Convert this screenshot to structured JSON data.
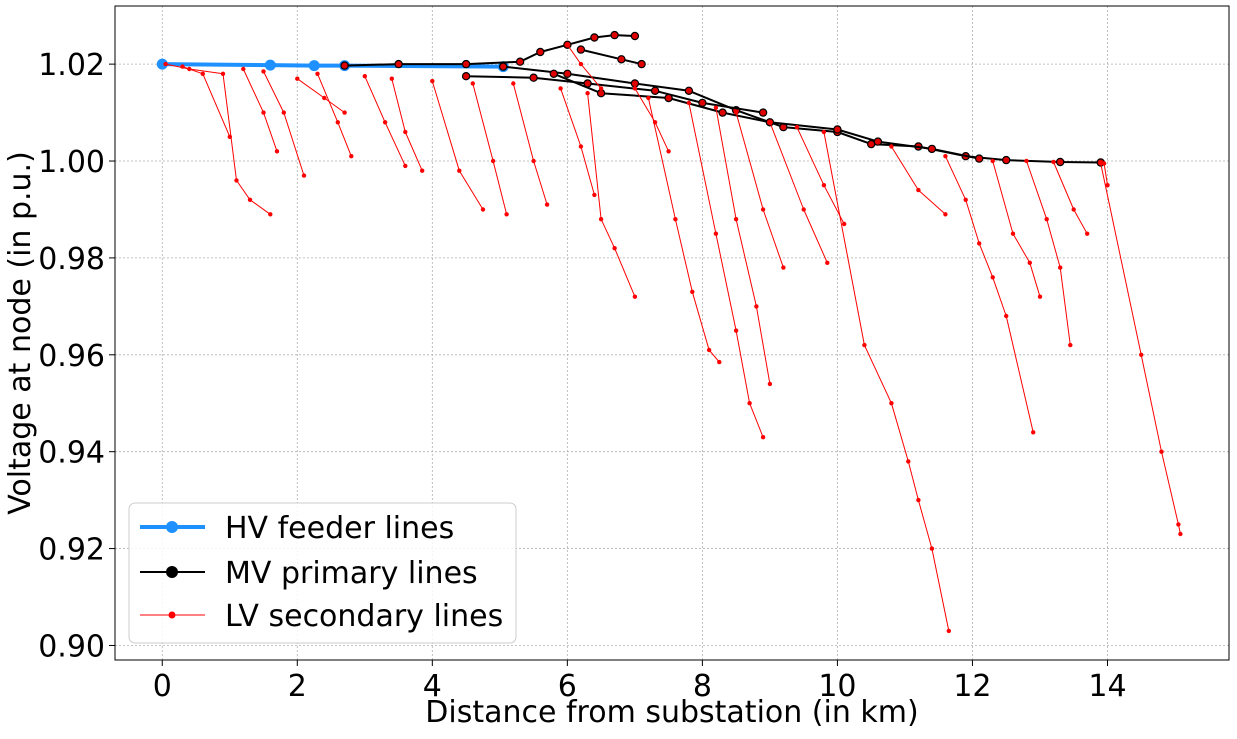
{
  "chart_data": {
    "type": "line",
    "title": "",
    "xlabel": "Distance from substation (in km)",
    "ylabel": "Voltage at node (in p.u.)",
    "xlim": [
      -0.7,
      15.8
    ],
    "ylim": [
      0.897,
      1.032
    ],
    "xticks": [
      0,
      2,
      4,
      6,
      8,
      10,
      12,
      14
    ],
    "yticks": [
      0.9,
      0.92,
      0.94,
      0.96,
      0.98,
      1.0,
      1.02
    ],
    "ytick_labels": [
      "0.90",
      "0.92",
      "0.94",
      "0.96",
      "0.98",
      "1.00",
      "1.02"
    ],
    "grid": true,
    "legend_position": "lower-left",
    "legend": [
      {
        "name": "HV feeder lines",
        "color": "#1e90ff",
        "marker": "circle"
      },
      {
        "name": "MV primary lines",
        "color": "#000000",
        "marker": "circle"
      },
      {
        "name": "LV secondary lines",
        "color": "#ff0000",
        "marker": "circle"
      }
    ],
    "series": [
      {
        "name": "HV feeder lines",
        "color": "#1e90ff",
        "points": [
          [
            0.0,
            1.02
          ],
          [
            1.6,
            1.0198
          ],
          [
            2.25,
            1.0197
          ],
          [
            2.7,
            1.0197
          ],
          [
            5.05,
            1.0195
          ]
        ]
      },
      {
        "name": "MV primary lines",
        "color": "#000000",
        "branches": [
          [
            [
              2.7,
              1.0197
            ],
            [
              3.5,
              1.02
            ],
            [
              4.5,
              1.02
            ],
            [
              5.3,
              1.0205
            ],
            [
              5.6,
              1.0225
            ],
            [
              6.0,
              1.024
            ],
            [
              6.4,
              1.0255
            ],
            [
              6.7,
              1.026
            ],
            [
              7.0,
              1.0258
            ]
          ],
          [
            [
              5.05,
              1.0195
            ],
            [
              6.0,
              1.018
            ],
            [
              7.0,
              1.016
            ],
            [
              7.8,
              1.0145
            ],
            [
              8.5,
              1.0105
            ],
            [
              9.2,
              1.007
            ],
            [
              10.0,
              1.006
            ],
            [
              10.5,
              1.0035
            ],
            [
              11.2,
              1.003
            ],
            [
              11.9,
              1.001
            ],
            [
              12.5,
              1.0002
            ],
            [
              13.3,
              0.9998
            ],
            [
              13.9,
              0.9997
            ]
          ],
          [
            [
              4.5,
              1.0175
            ],
            [
              5.5,
              1.0172
            ],
            [
              6.3,
              1.016
            ],
            [
              7.3,
              1.0145
            ],
            [
              8.0,
              1.012
            ],
            [
              8.9,
              1.01
            ]
          ],
          [
            [
              5.8,
              1.018
            ],
            [
              6.5,
              1.014
            ],
            [
              7.5,
              1.013
            ],
            [
              8.3,
              1.01
            ],
            [
              9.0,
              1.008
            ],
            [
              10.0,
              1.0065
            ],
            [
              10.6,
              1.004
            ],
            [
              11.4,
              1.0025
            ],
            [
              12.1,
              1.0005
            ]
          ],
          [
            [
              6.2,
              1.023
            ],
            [
              6.8,
              1.021
            ],
            [
              7.1,
              1.02
            ]
          ]
        ]
      },
      {
        "name": "LV secondary lines",
        "color": "#ff0000",
        "branches": [
          [
            [
              0.05,
              1.02
            ],
            [
              0.4,
              1.019
            ],
            [
              0.9,
              1.018
            ],
            [
              1.1,
              0.996
            ],
            [
              1.3,
              0.992
            ],
            [
              1.6,
              0.989
            ]
          ],
          [
            [
              0.3,
              1.0195
            ],
            [
              0.6,
              1.018
            ],
            [
              1.0,
              1.005
            ]
          ],
          [
            [
              1.5,
              1.0185
            ],
            [
              1.8,
              1.01
            ],
            [
              2.1,
              0.997
            ]
          ],
          [
            [
              1.2,
              1.019
            ],
            [
              1.5,
              1.01
            ],
            [
              1.7,
              1.002
            ]
          ],
          [
            [
              2.3,
              1.018
            ],
            [
              2.6,
              1.008
            ],
            [
              2.8,
              1.001
            ]
          ],
          [
            [
              3.0,
              1.0175
            ],
            [
              3.3,
              1.008
            ],
            [
              3.6,
              0.999
            ]
          ],
          [
            [
              3.4,
              1.017
            ],
            [
              3.6,
              1.006
            ],
            [
              3.85,
              0.998
            ]
          ],
          [
            [
              4.0,
              1.0165
            ],
            [
              4.4,
              0.998
            ],
            [
              4.75,
              0.99
            ]
          ],
          [
            [
              4.6,
              1.016
            ],
            [
              4.9,
              1.0
            ],
            [
              5.1,
              0.989
            ]
          ],
          [
            [
              5.2,
              1.016
            ],
            [
              5.5,
              1.0
            ],
            [
              5.7,
              0.991
            ]
          ],
          [
            [
              5.9,
              1.015
            ],
            [
              6.2,
              1.003
            ],
            [
              6.4,
              0.993
            ]
          ],
          [
            [
              6.3,
              1.014
            ],
            [
              6.5,
              0.988
            ],
            [
              6.7,
              0.982
            ],
            [
              7.0,
              0.972
            ]
          ],
          [
            [
              7.2,
              1.013
            ],
            [
              7.6,
              0.988
            ],
            [
              7.85,
              0.973
            ],
            [
              8.1,
              0.961
            ],
            [
              8.25,
              0.9585
            ]
          ],
          [
            [
              7.8,
              1.012
            ],
            [
              8.2,
              0.985
            ],
            [
              8.5,
              0.965
            ],
            [
              8.7,
              0.95
            ],
            [
              8.9,
              0.943
            ]
          ],
          [
            [
              8.2,
              1.011
            ],
            [
              8.5,
              0.988
            ],
            [
              8.8,
              0.97
            ],
            [
              9.0,
              0.954
            ]
          ],
          [
            [
              8.5,
              1.01
            ],
            [
              8.9,
              0.99
            ],
            [
              9.2,
              0.978
            ]
          ],
          [
            [
              9.0,
              1.008
            ],
            [
              9.5,
              0.99
            ],
            [
              9.85,
              0.979
            ]
          ],
          [
            [
              9.4,
              1.007
            ],
            [
              9.8,
              0.995
            ],
            [
              10.1,
              0.987
            ]
          ],
          [
            [
              9.8,
              1.006
            ],
            [
              10.4,
              0.962
            ],
            [
              10.8,
              0.95
            ],
            [
              11.05,
              0.938
            ],
            [
              11.2,
              0.93
            ],
            [
              11.4,
              0.92
            ],
            [
              11.65,
              0.903
            ]
          ],
          [
            [
              10.8,
              1.003
            ],
            [
              11.2,
              0.994
            ],
            [
              11.6,
              0.989
            ]
          ],
          [
            [
              11.6,
              1.001
            ],
            [
              11.9,
              0.992
            ],
            [
              12.1,
              0.983
            ],
            [
              12.3,
              0.976
            ],
            [
              12.5,
              0.968
            ],
            [
              12.9,
              0.944
            ]
          ],
          [
            [
              12.3,
              1.0
            ],
            [
              12.6,
              0.985
            ],
            [
              12.85,
              0.979
            ],
            [
              13.0,
              0.972
            ]
          ],
          [
            [
              12.8,
              1.0
            ],
            [
              13.1,
              0.988
            ],
            [
              13.3,
              0.978
            ],
            [
              13.45,
              0.962
            ]
          ],
          [
            [
              13.2,
              0.9998
            ],
            [
              13.5,
              0.99
            ],
            [
              13.7,
              0.985
            ]
          ],
          [
            [
              13.9,
              0.9995
            ],
            [
              14.5,
              0.96
            ],
            [
              14.8,
              0.94
            ],
            [
              15.05,
              0.925
            ],
            [
              15.08,
              0.923
            ]
          ],
          [
            [
              13.95,
              0.9995
            ],
            [
              14.0,
              0.995
            ]
          ],
          [
            [
              6.0,
              1.024
            ],
            [
              6.2,
              1.02
            ],
            [
              6.5,
              1.015
            ]
          ],
          [
            [
              2.0,
              1.017
            ],
            [
              2.4,
              1.013
            ],
            [
              2.7,
              1.01
            ]
          ],
          [
            [
              7.0,
              1.015
            ],
            [
              7.3,
              1.008
            ],
            [
              7.5,
              1.002
            ]
          ]
        ]
      }
    ]
  }
}
